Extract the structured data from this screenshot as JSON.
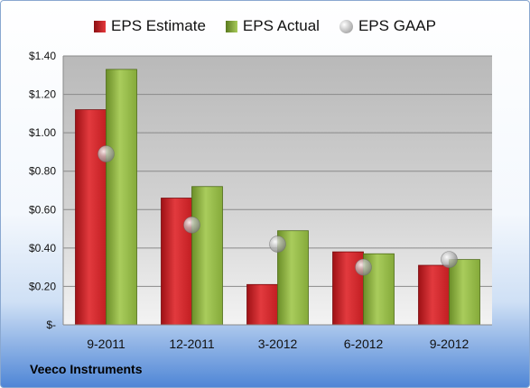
{
  "company": "Veeco Instruments",
  "colors": {
    "estimate": "#d42a2e",
    "actual": "#8fb445",
    "gaap": "#a6a6a6"
  },
  "chart_data": {
    "type": "bar",
    "title": "",
    "xlabel": "",
    "ylabel": "",
    "categories": [
      "9-2011",
      "12-2011",
      "3-2012",
      "6-2012",
      "9-2012"
    ],
    "series": [
      {
        "name": "EPS Estimate",
        "kind": "bar",
        "values": [
          1.12,
          0.66,
          0.21,
          0.38,
          0.31
        ]
      },
      {
        "name": "EPS Actual",
        "kind": "bar",
        "values": [
          1.33,
          0.72,
          0.49,
          0.37,
          0.34
        ]
      },
      {
        "name": "EPS GAAP",
        "kind": "marker",
        "values": [
          0.89,
          0.52,
          0.42,
          0.3,
          0.34
        ]
      }
    ],
    "ylim": [
      0,
      1.4
    ],
    "yticks": [
      0,
      0.2,
      0.4,
      0.6,
      0.8,
      1.0,
      1.2,
      1.4
    ],
    "ytick_labels": [
      "$-",
      "$0.20",
      "$0.40",
      "$0.60",
      "$0.80",
      "$1.00",
      "$1.20",
      "$1.40"
    ],
    "grid": true,
    "legend_position": "top"
  }
}
